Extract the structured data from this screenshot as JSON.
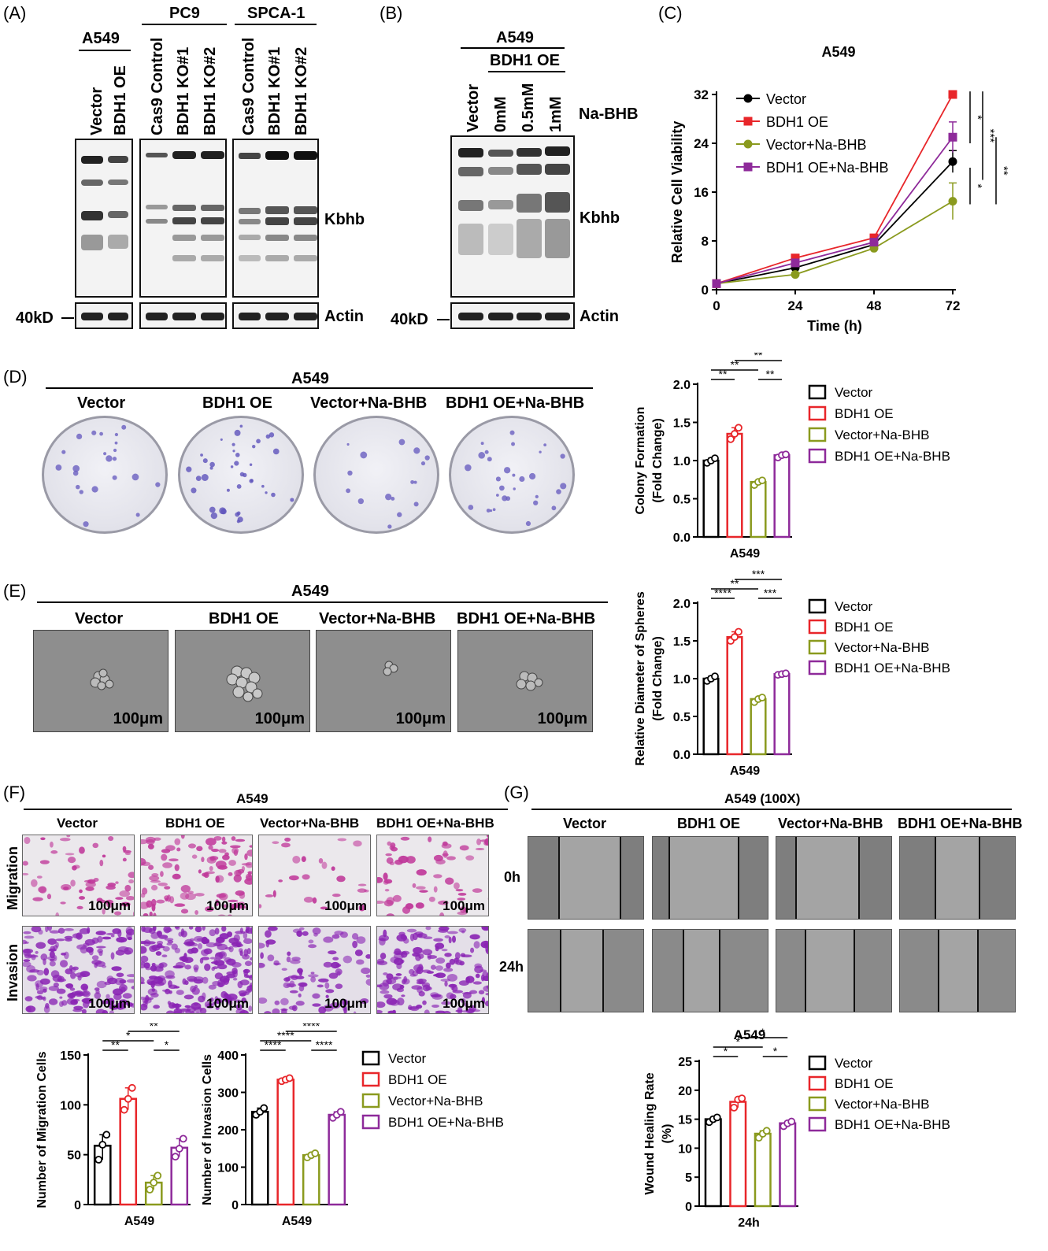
{
  "panels": {
    "A": "(A)",
    "B": "(B)",
    "C": "(C)",
    "D": "(D)",
    "E": "(E)",
    "F": "(F)",
    "G": "(G)"
  },
  "panelA": {
    "groups": [
      "A549",
      "PC9",
      "SPCA-1"
    ],
    "lanes_a549": [
      "Vector",
      "BDH1 OE"
    ],
    "lanes_ko": [
      "Cas9 Control",
      "BDH1 KO#1",
      "BDH1 KO#2"
    ],
    "kbhb": "Kbhb",
    "actin": "Actin",
    "marker": "40kD"
  },
  "panelB": {
    "group": "A549",
    "subgroup": "BDH1 OE",
    "lanes": [
      "Vector",
      "0mM",
      "0.5mM",
      "1mM"
    ],
    "treatment": "Na-BHB",
    "kbhb": "Kbhb",
    "actin": "Actin",
    "marker": "40kD"
  },
  "conditions": [
    "Vector",
    "BDH1 OE",
    "Vector+Na-BHB",
    "BDH1 OE+Na-BHB"
  ],
  "colors": {
    "vector": "#000000",
    "oe": "#e8262a",
    "vbhb": "#8a9a1e",
    "oebhb": "#8e2a9a"
  },
  "panelD": {
    "title": "A549",
    "scale": ""
  },
  "panelE": {
    "title": "A549",
    "scale": "100μm"
  },
  "panelF": {
    "title": "A549",
    "rows": [
      "Migration",
      "Invasion"
    ],
    "scale": "100μm"
  },
  "panelG": {
    "title": "A549 (100X)",
    "rows": [
      "0h",
      "24h"
    ]
  },
  "chart_data": [
    {
      "id": "C",
      "type": "line",
      "title": "A549",
      "xlabel": "Time (h)",
      "ylabel": "Relative Cell Viability",
      "x": [
        0,
        24,
        48,
        72
      ],
      "xlim": [
        0,
        72
      ],
      "ylim": [
        0,
        32
      ],
      "yticks": [
        0,
        8,
        16,
        24,
        32
      ],
      "series": [
        {
          "name": "Vector",
          "values": [
            1,
            3.6,
            7.4,
            21
          ],
          "err": [
            0.2,
            0.3,
            0.4,
            1.8
          ]
        },
        {
          "name": "BDH1 OE",
          "values": [
            1,
            5.2,
            8.5,
            32
          ],
          "err": [
            0.2,
            0.3,
            0.4,
            0.6
          ]
        },
        {
          "name": "Vector+Na-BHB",
          "values": [
            1,
            2.5,
            6.8,
            14.5
          ],
          "err": [
            0.2,
            0.3,
            0.4,
            3.0
          ]
        },
        {
          "name": "BDH1 OE+Na-BHB",
          "values": [
            1,
            4.4,
            7.8,
            25
          ],
          "err": [
            0.2,
            0.3,
            0.4,
            2.5
          ]
        }
      ],
      "sig": [
        "*",
        "***",
        "*",
        "**"
      ]
    },
    {
      "id": "D",
      "type": "bar",
      "xlabel": "A549",
      "ylabel": "Colony Formation (Fold Change)",
      "ylim": [
        0,
        2
      ],
      "yticks": [
        "0.0",
        "0.5",
        "1.0",
        "1.5",
        "2.0"
      ],
      "categories": [
        "Vector",
        "BDH1 OE",
        "Vector+Na-BHB",
        "BDH1 OE+Na-BHB"
      ],
      "values": [
        1.0,
        1.35,
        0.72,
        1.07
      ],
      "points": [
        [
          0.97,
          1.0,
          1.03
        ],
        [
          1.28,
          1.35,
          1.43
        ],
        [
          0.68,
          0.72,
          0.74
        ],
        [
          1.04,
          1.07,
          1.08
        ]
      ],
      "sig": [
        "**",
        "**",
        "**",
        "**"
      ]
    },
    {
      "id": "E",
      "type": "bar",
      "xlabel": "A549",
      "ylabel": "Relative Diameter of Spheres (Fold Change)",
      "ylim": [
        0,
        2
      ],
      "yticks": [
        "0.0",
        "0.5",
        "1.0",
        "1.5",
        "2.0"
      ],
      "categories": [
        "Vector",
        "BDH1 OE",
        "Vector+Na-BHB",
        "BDH1 OE+Na-BHB"
      ],
      "values": [
        1.0,
        1.55,
        0.73,
        1.06
      ],
      "points": [
        [
          0.97,
          1.0,
          1.03
        ],
        [
          1.5,
          1.55,
          1.62
        ],
        [
          0.69,
          0.73,
          0.75
        ],
        [
          1.05,
          1.06,
          1.07
        ]
      ],
      "sig": [
        "****",
        "**",
        "***",
        "***"
      ]
    },
    {
      "id": "F-migration",
      "type": "bar",
      "xlabel": "A549",
      "ylabel": "Number of Migration Cells",
      "ylim": [
        0,
        150
      ],
      "yticks": [
        "0",
        "50",
        "100",
        "150"
      ],
      "categories": [
        "Vector",
        "BDH1 OE",
        "Vector+Na-BHB",
        "BDH1 OE+Na-BHB"
      ],
      "values": [
        59,
        106,
        22,
        57
      ],
      "points": [
        [
          45,
          60,
          70
        ],
        [
          95,
          106,
          117
        ],
        [
          15,
          22,
          29
        ],
        [
          48,
          56,
          66
        ]
      ],
      "sig": [
        "**",
        "*",
        "*",
        "**"
      ]
    },
    {
      "id": "F-invasion",
      "type": "bar",
      "xlabel": "A549",
      "ylabel": "Number of Invasion Cells",
      "ylim": [
        0,
        400
      ],
      "yticks": [
        "0",
        "100",
        "200",
        "300",
        "400"
      ],
      "categories": [
        "Vector",
        "BDH1 OE",
        "Vector+Na-BHB",
        "BDH1 OE+Na-BHB"
      ],
      "values": [
        248,
        334,
        132,
        240
      ],
      "points": [
        [
          240,
          248,
          258
        ],
        [
          330,
          334,
          338
        ],
        [
          126,
          132,
          137
        ],
        [
          232,
          240,
          248
        ]
      ],
      "sig": [
        "****",
        "****",
        "****",
        "****"
      ]
    },
    {
      "id": "G",
      "type": "bar",
      "xlabel": "24h",
      "ylabel": "Wound Healing Rate (%)",
      "ylim": [
        0,
        25
      ],
      "yticks": [
        "0",
        "5",
        "10",
        "15",
        "20",
        "25"
      ],
      "categories": [
        "Vector",
        "BDH1 OE",
        "Vector+Na-BHB",
        "BDH1 OE+Na-BHB"
      ],
      "values": [
        15,
        18,
        12.5,
        14.3
      ],
      "points": [
        [
          14.5,
          15,
          15.3
        ],
        [
          17,
          18.4,
          18.6
        ],
        [
          11.8,
          12.5,
          13
        ],
        [
          13.8,
          14.3,
          14.6
        ]
      ],
      "sig": [
        "*",
        "*",
        "*",
        "*"
      ],
      "title": "A549"
    }
  ]
}
